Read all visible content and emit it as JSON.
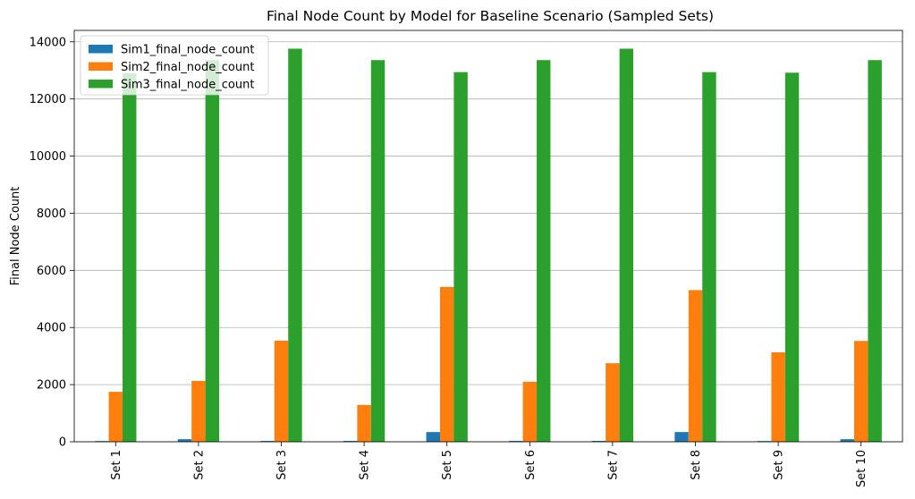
{
  "chart_data": {
    "type": "bar",
    "title": "Final Node Count by Model for Baseline Scenario (Sampled Sets)",
    "xlabel": "",
    "ylabel": "Final Node Count",
    "categories": [
      "Set 1",
      "Set 2",
      "Set 3",
      "Set 4",
      "Set 5",
      "Set 6",
      "Set 7",
      "Set 8",
      "Set 9",
      "Set 10"
    ],
    "series": [
      {
        "name": "Sim1_final_node_count",
        "color": "#1f77b4",
        "values": [
          25,
          90,
          30,
          30,
          340,
          30,
          30,
          340,
          25,
          90
        ]
      },
      {
        "name": "Sim2_final_node_count",
        "color": "#ff7f0e",
        "values": [
          1750,
          2130,
          3540,
          1290,
          5420,
          2100,
          2750,
          5310,
          3130,
          3530
        ]
      },
      {
        "name": "Sim3_final_node_count",
        "color": "#2ca02c",
        "values": [
          12900,
          13360,
          13760,
          13360,
          12940,
          13360,
          13760,
          12940,
          12920,
          13360
        ]
      }
    ],
    "yticks": [
      0,
      2000,
      4000,
      6000,
      8000,
      10000,
      12000,
      14000
    ],
    "ylim": [
      0,
      14400
    ],
    "grid": "horizontal",
    "legend_position": "top-left"
  }
}
